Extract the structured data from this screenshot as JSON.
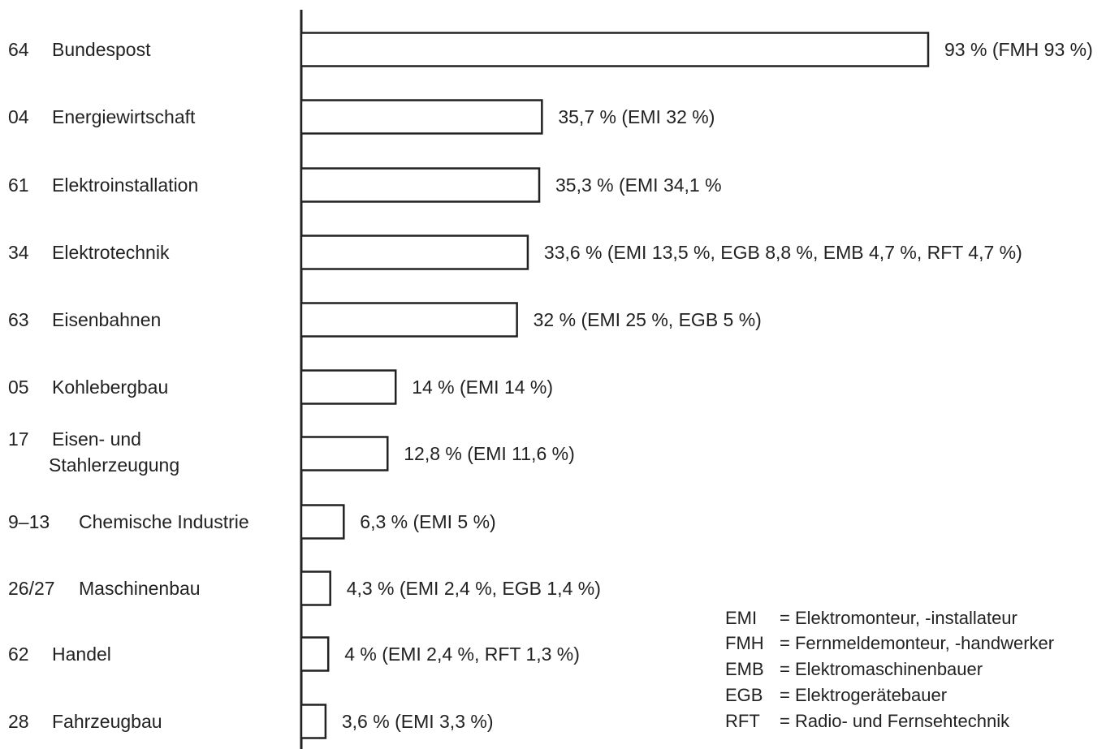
{
  "chart_data": {
    "type": "bar",
    "orientation": "horizontal",
    "title": "",
    "xlabel": "",
    "ylabel": "",
    "xlim": [
      0,
      93
    ],
    "grid": false,
    "categories": [
      {
        "code": "64",
        "name": [
          "Bundespost"
        ]
      },
      {
        "code": "04",
        "name": [
          "Energiewirtschaft"
        ]
      },
      {
        "code": "61",
        "name": [
          "Elektroinstallation"
        ]
      },
      {
        "code": "34",
        "name": [
          "Elektrotechnik"
        ]
      },
      {
        "code": "63",
        "name": [
          "Eisenbahnen"
        ]
      },
      {
        "code": "05",
        "name": [
          "Kohlebergbau"
        ]
      },
      {
        "code": "17",
        "name": [
          "Eisen- und",
          "Stahlerzeugung"
        ]
      },
      {
        "code": "9–13",
        "name": [
          "Chemische Industrie"
        ]
      },
      {
        "code": "26/27",
        "name": [
          "Maschinenbau"
        ]
      },
      {
        "code": "62",
        "name": [
          "Handel"
        ]
      },
      {
        "code": "28",
        "name": [
          "Fahrzeugbau"
        ]
      }
    ],
    "values": [
      93,
      35.7,
      35.3,
      33.6,
      32,
      14,
      12.8,
      6.3,
      4.3,
      4,
      3.6
    ],
    "value_labels": [
      "93 % (FMH 93 %)",
      "35,7 % (EMI 32 %)",
      "35,3 % (EMI 34,1 %",
      "33,6 % (EMI 13,5 %, EGB 8,8 %, EMB 4,7 %, RFT 4,7 %)",
      "32 % (EMI 25 %, EGB 5 %)",
      "14 % (EMI 14 %)",
      "12,8 % (EMI 11,6 %)",
      "6,3 % (EMI 5 %)",
      "4,3 % (EMI 2,4 %, EGB 1,4 %)",
      "4 % (EMI 2,4 %, RFT 1,3 %)",
      "3,6 % (EMI 3,3 %)"
    ],
    "legend": {
      "placement": "bottom-right",
      "entries": [
        {
          "abbr": "EMI",
          "text": "= Elektromonteur, -installateur"
        },
        {
          "abbr": "FMH",
          "text": "= Fernmeldemonteur, -handwerker"
        },
        {
          "abbr": "EMB",
          "text": "= Elektromaschinenbauer"
        },
        {
          "abbr": "EGB",
          "text": "= Elektrogerätebauer"
        },
        {
          "abbr": "RFT",
          "text": "= Radio- und Fernsehtechnik"
        }
      ]
    }
  }
}
